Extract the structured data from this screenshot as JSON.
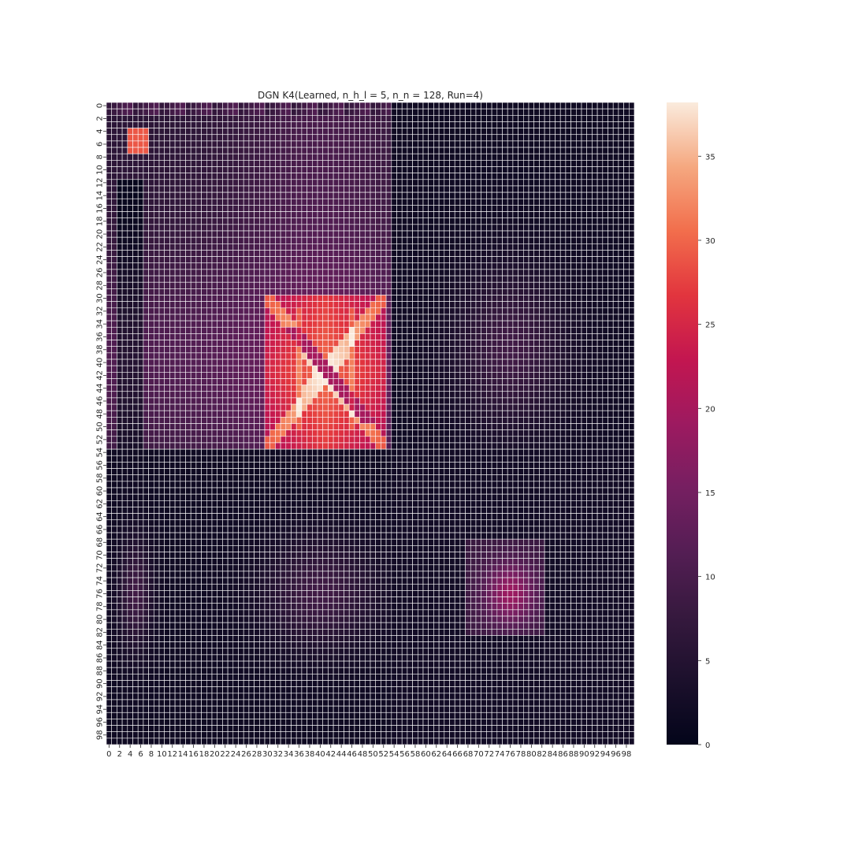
{
  "chart_data": {
    "type": "heatmap",
    "title": "DGN K4(Learned, n_h_l = 5, n_n = 128, Run=4)",
    "xlabel": "",
    "ylabel": "",
    "n_rows": 100,
    "n_cols": 100,
    "x_tick_labels": [
      "0",
      "2",
      "4",
      "6",
      "8",
      "10",
      "12",
      "14",
      "16",
      "18",
      "20",
      "22",
      "24",
      "26",
      "28",
      "30",
      "32",
      "34",
      "36",
      "38",
      "40",
      "42",
      "44",
      "46",
      "48",
      "50",
      "52",
      "54",
      "56",
      "58",
      "60",
      "62",
      "64",
      "66",
      "68",
      "70",
      "72",
      "74",
      "76",
      "78",
      "80",
      "82",
      "84",
      "86",
      "88",
      "90",
      "92",
      "94",
      "96",
      "98"
    ],
    "y_tick_labels": [
      "0",
      "2",
      "4",
      "6",
      "8",
      "10",
      "12",
      "14",
      "16",
      "18",
      "20",
      "22",
      "24",
      "26",
      "28",
      "30",
      "32",
      "34",
      "36",
      "38",
      "40",
      "42",
      "44",
      "46",
      "48",
      "50",
      "52",
      "54",
      "56",
      "58",
      "60",
      "62",
      "64",
      "66",
      "68",
      "70",
      "72",
      "74",
      "76",
      "78",
      "80",
      "82",
      "84",
      "86",
      "88",
      "90",
      "92",
      "94",
      "96",
      "98"
    ],
    "vmin": 0,
    "vmax": 38.2,
    "colormap": "rocket",
    "colorbar": {
      "ticks": [
        0,
        5,
        10,
        15,
        20,
        25,
        30,
        35
      ],
      "tick_labels": [
        "0",
        "5",
        "10",
        "15",
        "20",
        "25",
        "30",
        "35"
      ]
    },
    "cell_gridlines": true,
    "gridline_color": "#ffffff",
    "approximate_structure": {
      "base_value": 2,
      "blocks": [
        {
          "rows": [
            0,
            53
          ],
          "cols": [
            0,
            53
          ],
          "value_range": [
            6,
            18
          ]
        },
        {
          "rows": [
            30,
            53
          ],
          "cols": [
            30,
            52
          ],
          "value_range": [
            20,
            38
          ]
        },
        {
          "rows": [
            4,
            7
          ],
          "cols": [
            4,
            7
          ],
          "value": 29
        },
        {
          "rows": [
            69,
            80
          ],
          "cols": [
            69,
            80
          ],
          "value_range": [
            8,
            20
          ]
        },
        {
          "rows": [
            0,
            53
          ],
          "cols": [
            54,
            99
          ],
          "value_range": [
            1,
            16
          ]
        },
        {
          "rows": [
            54,
            99
          ],
          "cols": [
            0,
            53
          ],
          "value_range": [
            1,
            13
          ]
        }
      ]
    }
  }
}
